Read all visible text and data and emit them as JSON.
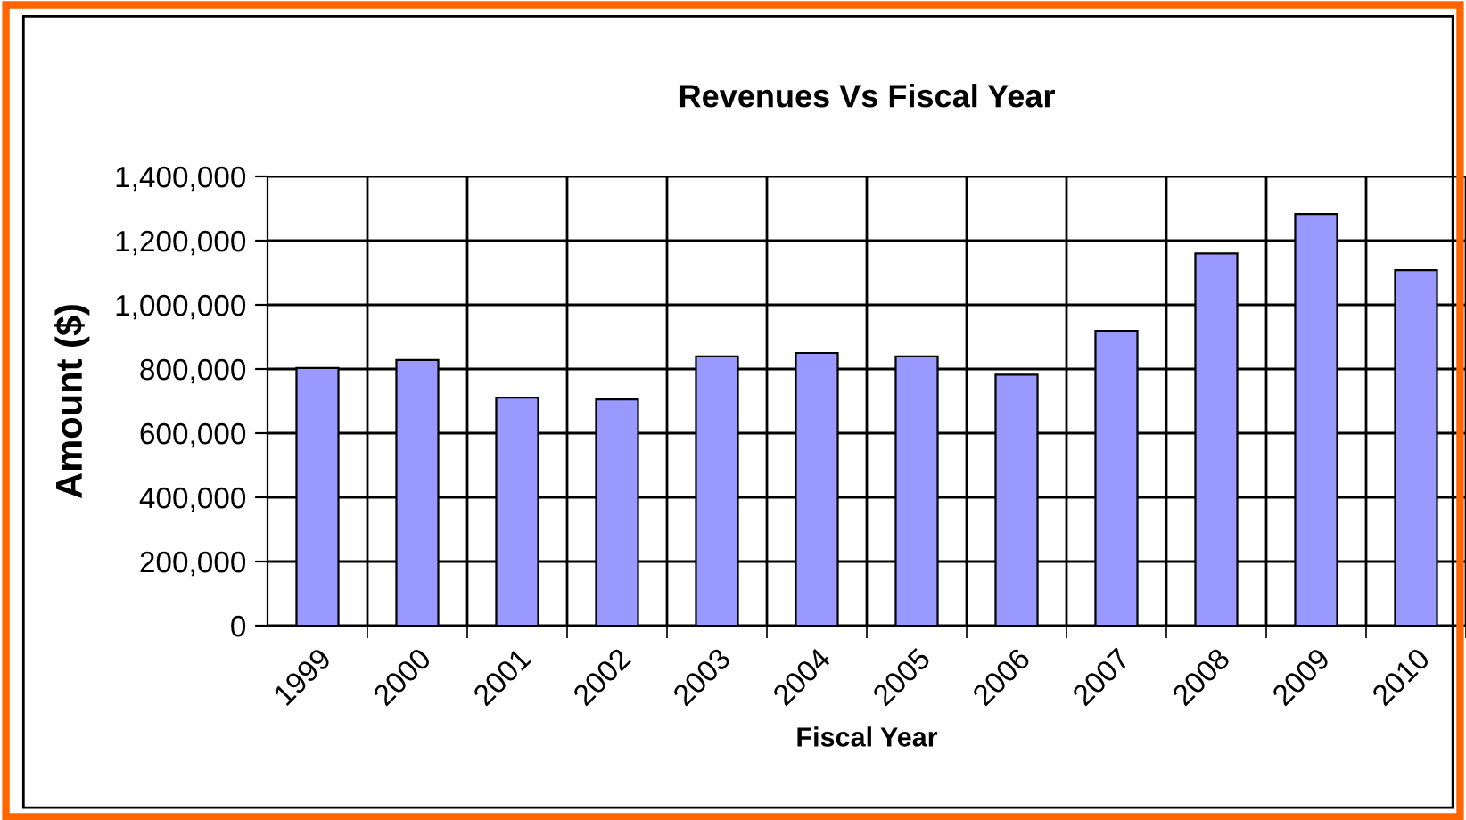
{
  "chart_data": {
    "type": "bar",
    "title": "Revenues Vs Fiscal Year",
    "xlabel": "Fiscal Year",
    "ylabel": "Amount ($)",
    "categories": [
      "1999",
      "2000",
      "2001",
      "2002",
      "2003",
      "2004",
      "2005",
      "2006",
      "2007",
      "2008",
      "2009",
      "2010"
    ],
    "values": [
      803000,
      828000,
      711000,
      705000,
      839000,
      850000,
      839000,
      782000,
      919000,
      1160000,
      1283000,
      1108000
    ],
    "color": "#9999ff",
    "ylim": [
      0,
      1400000
    ],
    "yticks": [
      0,
      {
        "value": 200000,
        "label": "200,000"
      },
      {
        "value": 400000,
        "label": "400,000"
      },
      {
        "value": 600000,
        "label": "600,000"
      },
      {
        "value": 800000,
        "label": "800,000"
      },
      {
        "value": 1000000,
        "label": "1,000,000"
      },
      {
        "value": 1200000,
        "label": "1,200,000"
      },
      {
        "value": 1400000,
        "label": "1,400,000"
      }
    ],
    "grid": true,
    "legend": false
  }
}
